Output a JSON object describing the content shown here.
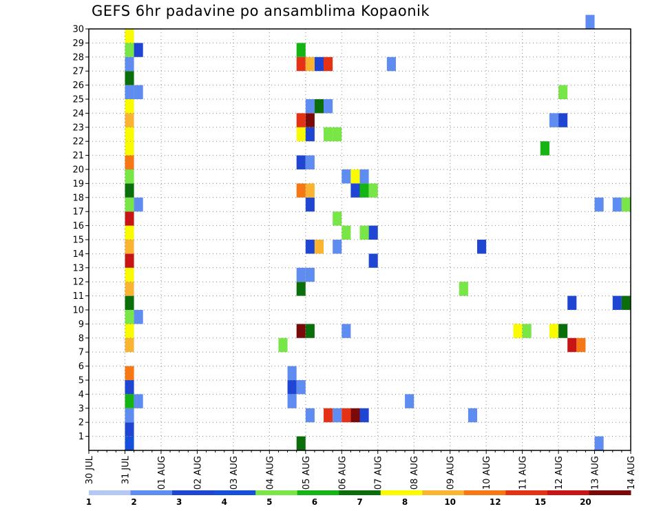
{
  "title": "GEFS 6hr padavine po ansamblima Kopaonik",
  "chart_data": {
    "type": "heatmap",
    "title": "GEFS 6hr padavine po ansamblima Kopaonik",
    "x_tick_labels": [
      "30 JUL",
      "31 JUL",
      "01 AUG",
      "02 AUG",
      "03 AUG",
      "04 AUG",
      "05 AUG",
      "06 AUG",
      "07 AUG",
      "08 AUG",
      "09 AUG",
      "10 AUG",
      "11 AUG",
      "12 AUG",
      "13 AUG",
      "14 AUG"
    ],
    "y_tick_labels": [
      "1",
      "2",
      "3",
      "4",
      "5",
      "6",
      "7",
      "8",
      "9",
      "10",
      "11",
      "12",
      "13",
      "14",
      "15",
      "16",
      "17",
      "18",
      "19",
      "20",
      "21",
      "22",
      "23",
      "24",
      "25",
      "26",
      "27",
      "28",
      "29",
      "30"
    ],
    "xlim_days": [
      0,
      15
    ],
    "ylim": [
      0,
      30
    ],
    "grid": true,
    "colorbar": {
      "labels": [
        "1",
        "2",
        "3",
        "4",
        "5",
        "6",
        "7",
        "8",
        "10",
        "12",
        "15",
        "20"
      ],
      "colors": [
        "#b4c8f5",
        "#5f8cf0",
        "#1e46d2",
        "#1450dc",
        "#78e646",
        "#14b414",
        "#0a6e0a",
        "#fafa00",
        "#fab432",
        "#f57814",
        "#e63214",
        "#c81414",
        "#7a0a0a"
      ]
    },
    "cell_width_days": 0.25,
    "cells": [
      [
        1.0,
        0,
        3
      ],
      [
        1.0,
        1,
        2
      ],
      [
        1.0,
        2,
        1
      ],
      [
        1.0,
        3,
        5
      ],
      [
        1.0,
        4,
        2
      ],
      [
        1.0,
        5,
        9
      ],
      [
        1.0,
        7,
        8
      ],
      [
        1.0,
        8,
        7
      ],
      [
        1.0,
        9,
        4
      ],
      [
        1.0,
        10,
        6
      ],
      [
        1.0,
        11,
        8
      ],
      [
        1.0,
        12,
        7
      ],
      [
        1.0,
        13,
        11
      ],
      [
        1.0,
        14,
        8
      ],
      [
        1.0,
        15,
        7
      ],
      [
        1.0,
        16,
        11
      ],
      [
        1.0,
        17,
        4
      ],
      [
        1.0,
        18,
        6
      ],
      [
        1.0,
        19,
        4
      ],
      [
        1.0,
        20,
        9
      ],
      [
        1.0,
        21,
        7
      ],
      [
        1.0,
        22,
        7
      ],
      [
        1.0,
        23,
        8
      ],
      [
        1.0,
        24,
        7
      ],
      [
        1.0,
        25,
        1
      ],
      [
        1.0,
        26,
        6
      ],
      [
        1.0,
        27,
        1
      ],
      [
        1.0,
        28,
        4
      ],
      [
        1.0,
        29,
        7
      ],
      [
        1.25,
        3,
        1
      ],
      [
        1.25,
        9,
        1
      ],
      [
        1.25,
        17,
        1
      ],
      [
        1.25,
        25,
        1
      ],
      [
        1.25,
        28,
        2
      ],
      [
        5.25,
        7,
        4
      ],
      [
        5.5,
        4,
        2
      ],
      [
        5.5,
        5,
        1
      ],
      [
        5.5,
        3,
        1
      ],
      [
        5.75,
        0,
        6
      ],
      [
        5.75,
        4,
        1
      ],
      [
        5.75,
        8,
        12
      ],
      [
        5.75,
        11,
        6
      ],
      [
        5.75,
        12,
        1
      ],
      [
        5.75,
        18,
        9
      ],
      [
        5.75,
        20,
        2
      ],
      [
        5.75,
        22,
        7
      ],
      [
        5.75,
        23,
        10
      ],
      [
        5.75,
        27,
        10
      ],
      [
        5.75,
        28,
        5
      ],
      [
        6.0,
        2,
        1
      ],
      [
        6.0,
        8,
        6
      ],
      [
        6.0,
        12,
        1
      ],
      [
        6.0,
        14,
        2
      ],
      [
        6.0,
        17,
        2
      ],
      [
        6.0,
        18,
        8
      ],
      [
        6.0,
        20,
        1
      ],
      [
        6.0,
        22,
        2
      ],
      [
        6.0,
        23,
        12
      ],
      [
        6.0,
        24,
        1
      ],
      [
        6.0,
        27,
        8
      ],
      [
        6.25,
        14,
        8
      ],
      [
        6.25,
        24,
        6
      ],
      [
        6.25,
        27,
        2
      ],
      [
        6.5,
        2,
        10
      ],
      [
        6.5,
        22,
        4
      ],
      [
        6.5,
        24,
        1
      ],
      [
        6.5,
        27,
        10
      ],
      [
        6.75,
        2,
        1
      ],
      [
        6.75,
        14,
        1
      ],
      [
        6.75,
        16,
        4
      ],
      [
        6.75,
        22,
        4
      ],
      [
        7.0,
        2,
        10
      ],
      [
        7.0,
        8,
        1
      ],
      [
        7.0,
        15,
        4
      ],
      [
        7.0,
        19,
        1
      ],
      [
        7.25,
        2,
        12
      ],
      [
        7.25,
        19,
        7
      ],
      [
        7.25,
        18,
        2
      ],
      [
        7.5,
        2,
        2
      ],
      [
        7.5,
        15,
        4
      ],
      [
        7.5,
        18,
        5
      ],
      [
        7.5,
        19,
        1
      ],
      [
        7.75,
        13,
        2
      ],
      [
        7.75,
        15,
        2
      ],
      [
        7.75,
        18,
        4
      ],
      [
        8.25,
        27,
        1
      ],
      [
        8.75,
        3,
        1
      ],
      [
        10.25,
        11,
        4
      ],
      [
        10.5,
        2,
        1
      ],
      [
        10.75,
        14,
        2
      ],
      [
        11.75,
        8,
        7
      ],
      [
        12.0,
        8,
        4
      ],
      [
        12.5,
        21,
        5
      ],
      [
        12.75,
        8,
        7
      ],
      [
        12.75,
        23,
        1
      ],
      [
        13.0,
        8,
        6
      ],
      [
        13.0,
        23,
        2
      ],
      [
        13.0,
        25,
        4
      ],
      [
        13.25,
        7,
        11
      ],
      [
        13.25,
        10,
        2
      ],
      [
        13.5,
        7,
        9
      ],
      [
        13.75,
        30,
        1
      ],
      [
        14.0,
        0,
        1
      ],
      [
        14.0,
        17,
        1
      ],
      [
        14.5,
        17,
        1
      ],
      [
        14.5,
        10,
        2
      ],
      [
        14.75,
        17,
        4
      ],
      [
        14.75,
        10,
        6
      ]
    ],
    "cells_note": ""
  }
}
